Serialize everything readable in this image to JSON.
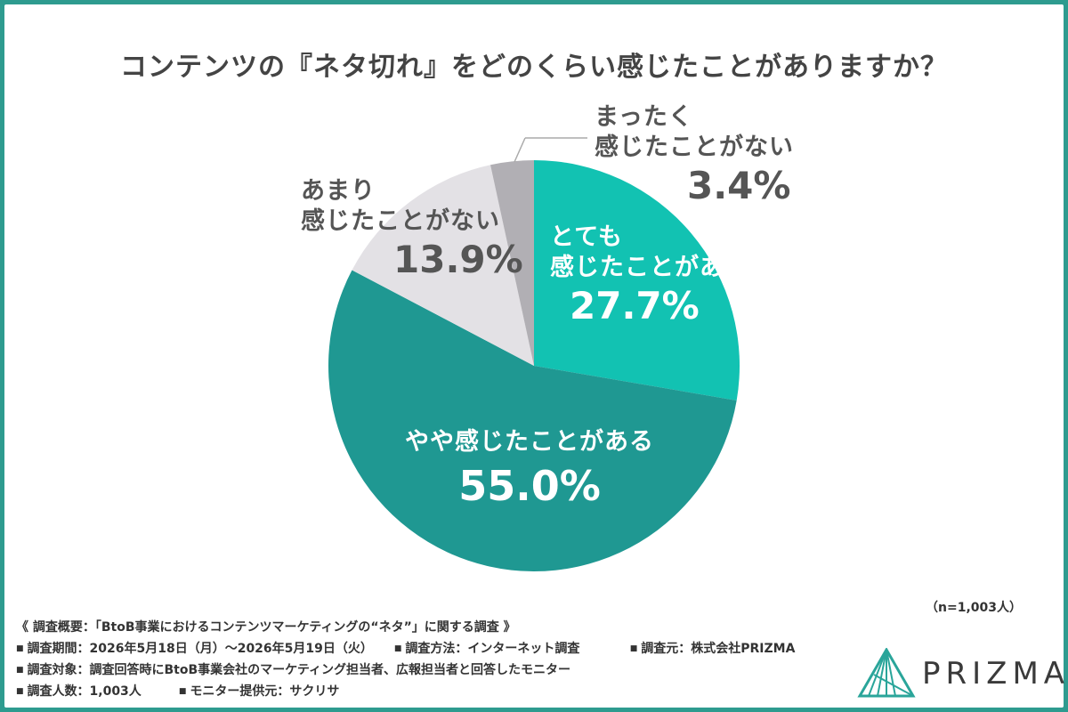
{
  "title": "コンテンツの『ネタ切れ』をどのくらい感じたことがありますか？",
  "note": "（n=1,003人）",
  "chart_data": {
    "type": "pie",
    "title": "コンテンツの『ネタ切れ』をどのくらい感じたことがありますか？",
    "start": "top, clockwise",
    "slices": [
      {
        "label": "とても感じたことがある",
        "value": 27.7,
        "value_text": "27.7%",
        "color": "#12c2b2"
      },
      {
        "label": "やや感じたことがある",
        "value": 55.0,
        "value_text": "55.0%",
        "color": "#1f9892"
      },
      {
        "label": "あまり感じたことがない",
        "value": 13.9,
        "value_text": "13.9%",
        "color": "#e3e1e5"
      },
      {
        "label": "まったく感じたことがない",
        "value": 3.4,
        "value_text": "3.4%",
        "color": "#b1afb4"
      }
    ]
  },
  "labels": {
    "s0": {
      "line1": "とても",
      "line2": "感じたことがある",
      "value": "27.7%"
    },
    "s1": {
      "line1": "やや感じたことがある",
      "value": "55.0%"
    },
    "s2": {
      "line1": "あまり",
      "line2": "感じたことがない",
      "value": "13.9%"
    },
    "s3": {
      "line1": "まったく",
      "line2": "感じたことがない",
      "value": "3.4%"
    }
  },
  "survey": {
    "heading": "《 調査概要：「BtoB事業におけるコンテンツマーケティングの“ネタ”」に関する調査 》",
    "period": "調査期間：2026年5月18日（月）〜2026年5月19日（火）",
    "method": "調査方法：インターネット調査",
    "source": "調査元：株式会社PRIZMA",
    "target": "調査対象：調査回答時にBtoB事業会社のマーケティング担当者、広報担当者と回答したモニター",
    "count": "調査人数：1,003人",
    "provider": "モニター提供元：サクリサ"
  },
  "logo": {
    "text": "PRIZMA"
  }
}
